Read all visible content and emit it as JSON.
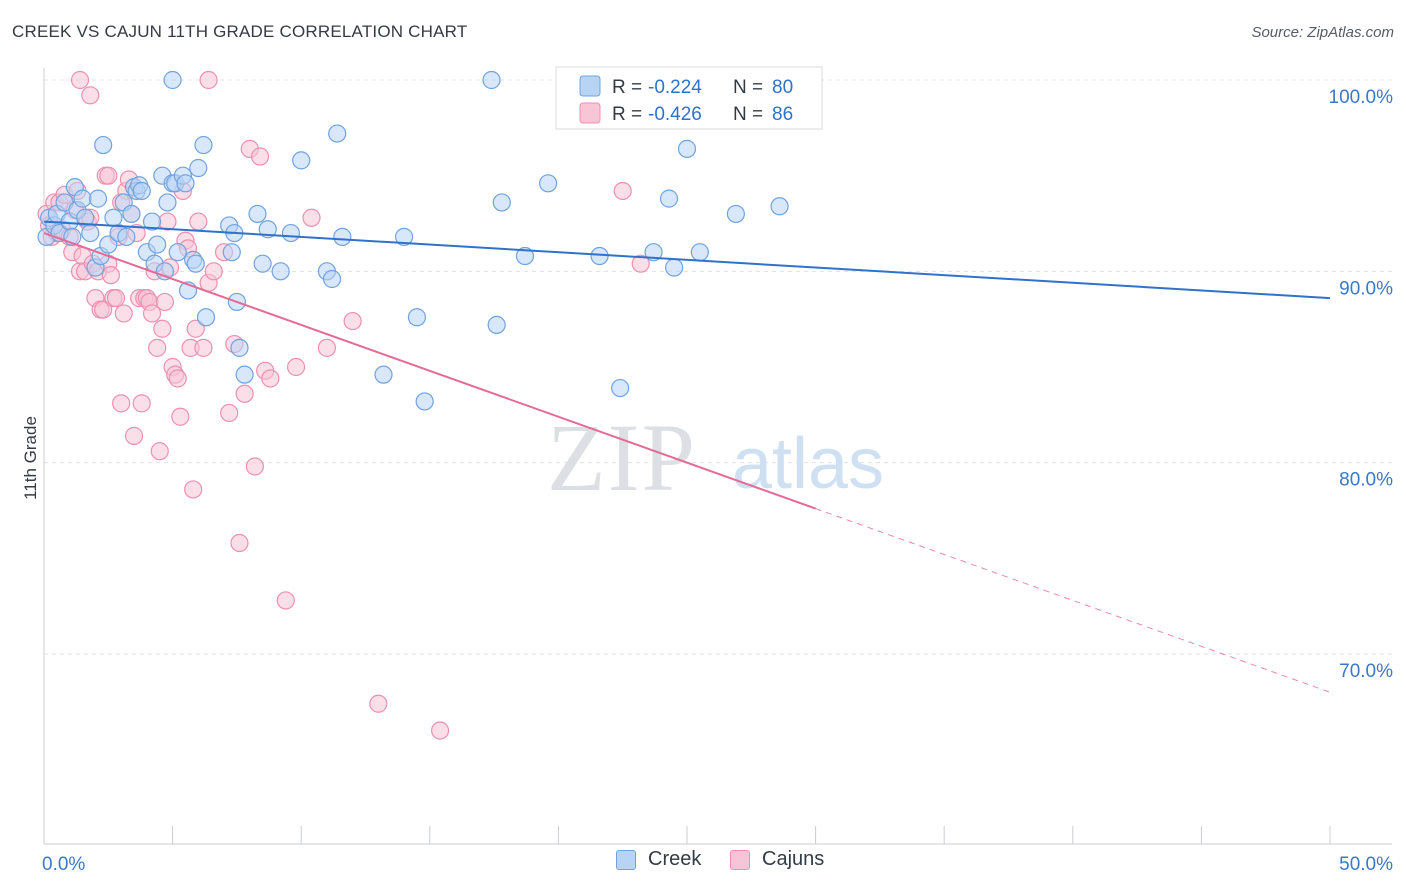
{
  "header": {
    "title": "CREEK VS CAJUN 11TH GRADE CORRELATION CHART",
    "source": "Source: ZipAtlas.com"
  },
  "watermark": {
    "left": "ZIP",
    "right": "atlas"
  },
  "colors": {
    "creek_fill": "#b8d4f5",
    "creek_stroke": "#6fa3e0",
    "creek_line": "#2f72cc",
    "cajun_fill": "#f8c5d6",
    "cajun_stroke": "#ee8fb0",
    "cajun_line": "#e56a96",
    "axis_text": "#3b78c8",
    "grid": "#dde0e6"
  },
  "legend": {
    "rows": [
      {
        "r_label": "R =",
        "r_value": "-0.224",
        "n_label": "N =",
        "n_value": "80"
      },
      {
        "r_label": "R =",
        "r_value": "-0.426",
        "n_label": "N =",
        "n_value": "86"
      }
    ]
  },
  "chart_data": {
    "type": "scatter",
    "xlabel": "",
    "ylabel": "11th Grade",
    "xlim": [
      0,
      50
    ],
    "ylim": [
      60,
      100
    ],
    "x_tick_labels": [
      "0.0%",
      "50.0%"
    ],
    "y_ticks": [
      70,
      80,
      90,
      100
    ],
    "y_tick_labels": [
      "70.0%",
      "80.0%",
      "90.0%",
      "100.0%"
    ],
    "grid": true,
    "legend_position": "top-center",
    "series": [
      {
        "name": "Creek",
        "color": "#6fa3e0",
        "trend": {
          "x0": 0,
          "y0": 92.6,
          "x1": 50,
          "y1": 88.6,
          "dashed_from": 50
        },
        "points": [
          [
            0.1,
            91.8
          ],
          [
            0.2,
            92.8
          ],
          [
            0.4,
            92.4
          ],
          [
            0.5,
            93.0
          ],
          [
            0.6,
            92.0
          ],
          [
            0.8,
            93.6
          ],
          [
            1.0,
            92.6
          ],
          [
            1.1,
            91.8
          ],
          [
            1.2,
            94.4
          ],
          [
            1.3,
            93.2
          ],
          [
            1.5,
            93.8
          ],
          [
            1.6,
            92.8
          ],
          [
            1.8,
            92.0
          ],
          [
            2.0,
            90.2
          ],
          [
            2.1,
            93.8
          ],
          [
            2.2,
            90.8
          ],
          [
            2.3,
            96.6
          ],
          [
            2.5,
            91.4
          ],
          [
            2.7,
            92.8
          ],
          [
            2.9,
            92.0
          ],
          [
            3.1,
            93.6
          ],
          [
            3.2,
            91.8
          ],
          [
            3.4,
            93.0
          ],
          [
            3.5,
            94.4
          ],
          [
            3.6,
            94.2
          ],
          [
            3.7,
            94.5
          ],
          [
            3.8,
            94.2
          ],
          [
            4.0,
            91.0
          ],
          [
            4.2,
            92.6
          ],
          [
            4.3,
            90.4
          ],
          [
            4.4,
            91.4
          ],
          [
            4.6,
            95.0
          ],
          [
            4.7,
            90.0
          ],
          [
            4.8,
            93.6
          ],
          [
            5.0,
            94.6
          ],
          [
            5.1,
            94.6
          ],
          [
            5.2,
            91.0
          ],
          [
            5.4,
            95.0
          ],
          [
            5.5,
            94.6
          ],
          [
            5.6,
            89.0
          ],
          [
            5.8,
            90.6
          ],
          [
            5.9,
            90.4
          ],
          [
            6.0,
            95.4
          ],
          [
            6.2,
            96.6
          ],
          [
            6.3,
            87.6
          ],
          [
            7.2,
            92.4
          ],
          [
            7.3,
            91.0
          ],
          [
            7.4,
            92.0
          ],
          [
            7.5,
            88.4
          ],
          [
            7.6,
            86.0
          ],
          [
            7.8,
            84.6
          ],
          [
            8.3,
            93.0
          ],
          [
            8.5,
            90.4
          ],
          [
            8.7,
            92.2
          ],
          [
            9.2,
            90.0
          ],
          [
            9.6,
            92.0
          ],
          [
            10.0,
            95.8
          ],
          [
            11.0,
            90.0
          ],
          [
            11.2,
            89.6
          ],
          [
            11.4,
            97.2
          ],
          [
            11.6,
            91.8
          ],
          [
            13.2,
            84.6
          ],
          [
            14.0,
            91.8
          ],
          [
            14.5,
            87.6
          ],
          [
            14.8,
            83.2
          ],
          [
            17.4,
            100.0
          ],
          [
            17.6,
            87.2
          ],
          [
            17.8,
            93.6
          ],
          [
            18.7,
            90.8
          ],
          [
            19.6,
            94.6
          ],
          [
            21.6,
            90.8
          ],
          [
            22.4,
            83.9
          ],
          [
            23.7,
            91.0
          ],
          [
            24.3,
            93.8
          ],
          [
            24.5,
            90.2
          ],
          [
            25.0,
            96.4
          ],
          [
            25.5,
            91.0
          ],
          [
            26.9,
            93.0
          ],
          [
            28.6,
            93.4
          ],
          [
            5.0,
            100.0
          ]
        ]
      },
      {
        "name": "Cajuns",
        "color": "#ee8fb0",
        "trend": {
          "x0": 0,
          "y0": 92.0,
          "x1": 30,
          "y1": 77.6,
          "dashed_from": 30
        },
        "points": [
          [
            0.1,
            93.0
          ],
          [
            0.2,
            92.4
          ],
          [
            0.3,
            91.8
          ],
          [
            0.4,
            93.6
          ],
          [
            0.5,
            92.0
          ],
          [
            0.6,
            93.6
          ],
          [
            0.7,
            92.2
          ],
          [
            0.8,
            94.0
          ],
          [
            1.0,
            91.8
          ],
          [
            1.1,
            91.0
          ],
          [
            1.2,
            93.2
          ],
          [
            1.3,
            94.2
          ],
          [
            1.4,
            90.0
          ],
          [
            1.5,
            90.8
          ],
          [
            1.6,
            90.0
          ],
          [
            1.7,
            92.6
          ],
          [
            1.8,
            92.8
          ],
          [
            1.9,
            90.4
          ],
          [
            2.0,
            88.6
          ],
          [
            2.1,
            90.0
          ],
          [
            2.2,
            88.0
          ],
          [
            2.3,
            88.0
          ],
          [
            2.4,
            95.0
          ],
          [
            2.5,
            90.4
          ],
          [
            2.6,
            89.8
          ],
          [
            2.7,
            88.6
          ],
          [
            2.8,
            88.6
          ],
          [
            2.9,
            91.8
          ],
          [
            3.0,
            83.1
          ],
          [
            3.1,
            87.8
          ],
          [
            3.2,
            94.2
          ],
          [
            3.3,
            94.8
          ],
          [
            3.4,
            93.0
          ],
          [
            3.5,
            81.4
          ],
          [
            3.6,
            92.0
          ],
          [
            3.7,
            88.6
          ],
          [
            3.8,
            83.1
          ],
          [
            3.9,
            88.6
          ],
          [
            4.0,
            88.6
          ],
          [
            4.1,
            88.4
          ],
          [
            4.2,
            87.8
          ],
          [
            4.3,
            90.0
          ],
          [
            4.4,
            86.0
          ],
          [
            4.5,
            80.6
          ],
          [
            4.6,
            87.0
          ],
          [
            4.7,
            88.4
          ],
          [
            4.8,
            92.6
          ],
          [
            4.9,
            90.2
          ],
          [
            5.0,
            85.0
          ],
          [
            5.1,
            84.6
          ],
          [
            5.2,
            84.4
          ],
          [
            5.3,
            82.4
          ],
          [
            5.4,
            94.2
          ],
          [
            5.5,
            91.6
          ],
          [
            5.6,
            91.2
          ],
          [
            5.7,
            86.0
          ],
          [
            5.8,
            78.6
          ],
          [
            5.9,
            87.0
          ],
          [
            6.0,
            92.6
          ],
          [
            6.2,
            86.0
          ],
          [
            6.4,
            89.4
          ],
          [
            6.6,
            90.0
          ],
          [
            7.0,
            91.0
          ],
          [
            7.2,
            82.6
          ],
          [
            7.4,
            86.2
          ],
          [
            7.6,
            75.8
          ],
          [
            7.8,
            83.6
          ],
          [
            8.0,
            96.4
          ],
          [
            8.2,
            79.8
          ],
          [
            8.4,
            96.0
          ],
          [
            8.6,
            84.8
          ],
          [
            8.8,
            84.4
          ],
          [
            9.4,
            72.8
          ],
          [
            9.8,
            85.0
          ],
          [
            10.4,
            92.8
          ],
          [
            11.0,
            86.0
          ],
          [
            12.0,
            87.4
          ],
          [
            13.0,
            67.4
          ],
          [
            15.4,
            66.0
          ],
          [
            22.5,
            94.2
          ],
          [
            23.2,
            90.4
          ],
          [
            2.5,
            95.0
          ],
          [
            1.4,
            100.0
          ],
          [
            1.8,
            99.2
          ],
          [
            6.4,
            100.0
          ],
          [
            3.0,
            93.6
          ]
        ]
      }
    ]
  }
}
